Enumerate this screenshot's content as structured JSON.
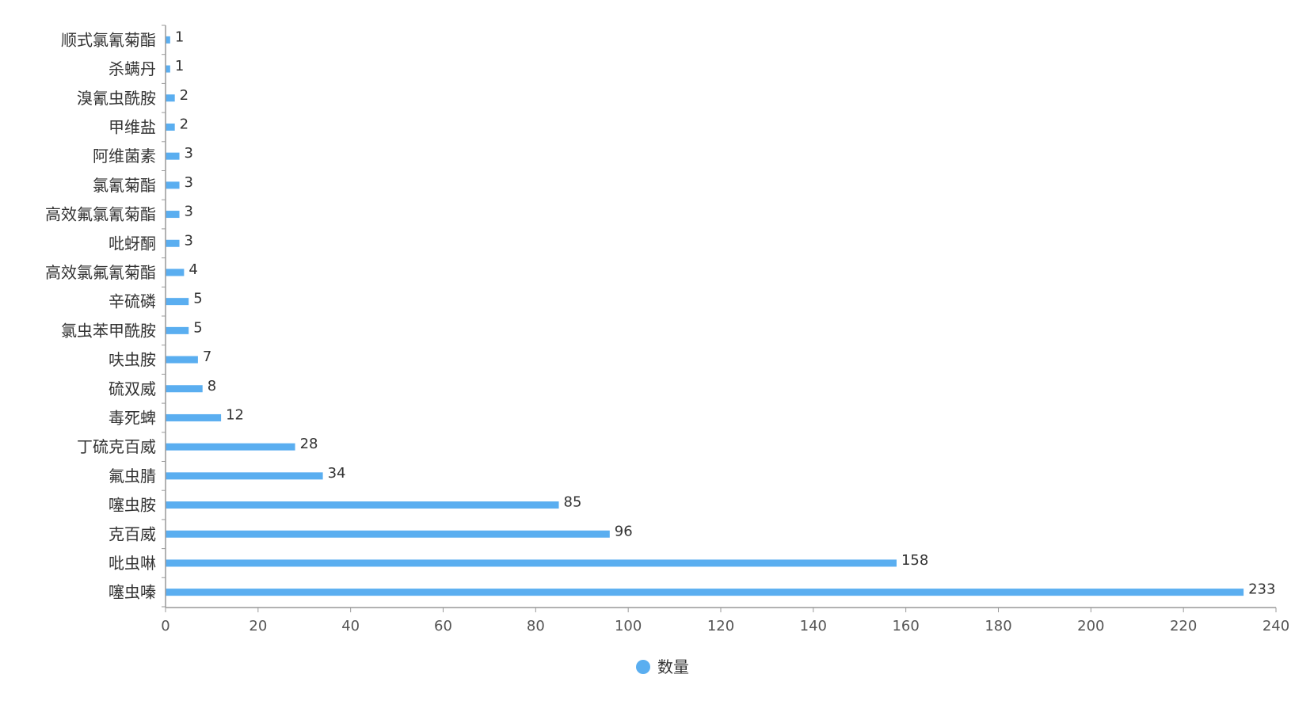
{
  "chart_data": {
    "type": "bar",
    "orientation": "horizontal",
    "categories": [
      "顺式氯氰菊酯",
      "杀螨丹",
      "溴氰虫酰胺",
      "甲维盐",
      "阿维菌素",
      "氯氰菊酯",
      "高效氟氯氰菊酯",
      "吡蚜酮",
      "高效氯氟氰菊酯",
      "辛硫磷",
      "氯虫苯甲酰胺",
      "呋虫胺",
      "硫双威",
      "毒死蜱",
      "丁硫克百威",
      "氟虫腈",
      "噻虫胺",
      "克百威",
      "吡虫啉",
      "噻虫嗪"
    ],
    "series": [
      {
        "name": "数量",
        "values": [
          1,
          1,
          2,
          2,
          3,
          3,
          3,
          3,
          4,
          5,
          5,
          7,
          8,
          12,
          28,
          34,
          85,
          96,
          158,
          233
        ]
      }
    ],
    "xlim": [
      0,
      240
    ],
    "xticks": [
      "0",
      "20",
      "40",
      "60",
      "80",
      "100",
      "120",
      "140",
      "160",
      "180",
      "200",
      "220",
      "240"
    ],
    "colors": {
      "bar": "#5aaef0",
      "axis": "#999999",
      "text": "#333333"
    },
    "grid": false,
    "legend": "bottom-center",
    "title": "",
    "xlabel": "",
    "ylabel": ""
  }
}
